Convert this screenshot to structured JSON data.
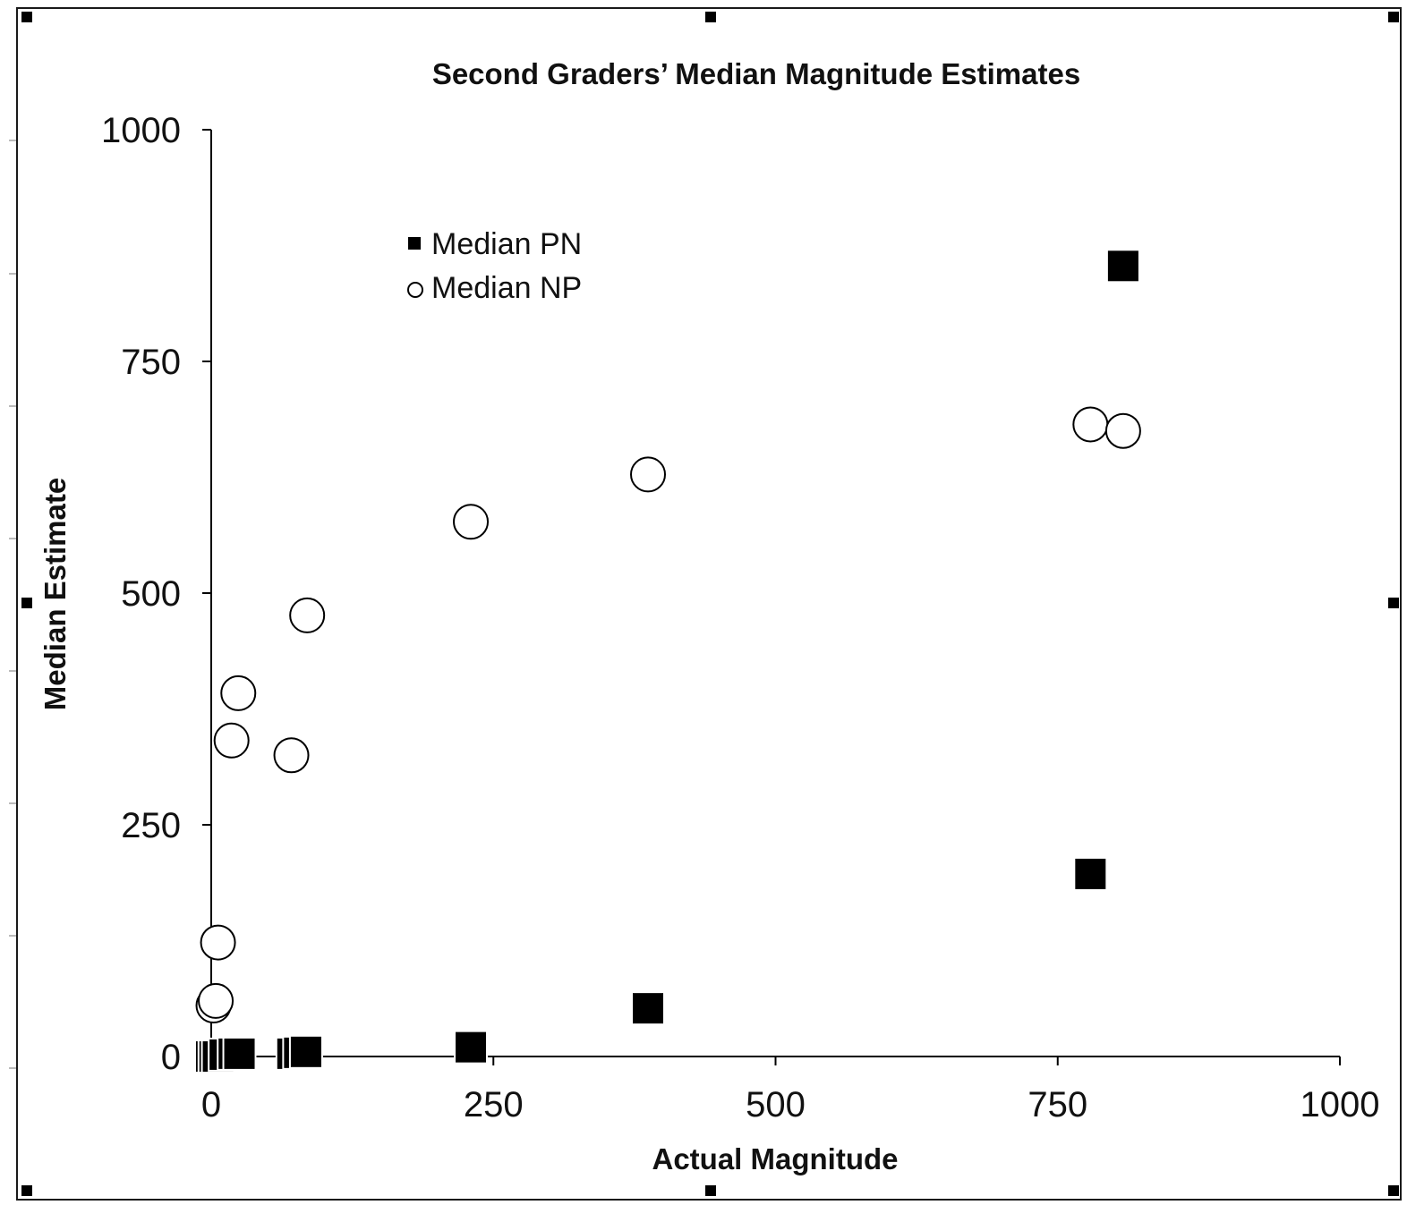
{
  "chart_data": {
    "type": "scatter",
    "title": "Second Graders’ Median Magnitude Estimates",
    "xlabel": "Actual Magnitude",
    "ylabel": "Median Estimate",
    "xlim": [
      0,
      1000
    ],
    "ylim": [
      0,
      1000
    ],
    "x_ticks": [
      "0",
      "250",
      "500",
      "750",
      "1000"
    ],
    "y_ticks": [
      "0",
      "250",
      "500",
      "750",
      "1000"
    ],
    "grid": false,
    "legend_position": "top-left",
    "series": [
      {
        "name": "Median PN",
        "marker": "filled-square",
        "color": "#000000",
        "points": [
          {
            "x": 0,
            "y": 0
          },
          {
            "x": 3,
            "y": 0
          },
          {
            "x": 6,
            "y": 0
          },
          {
            "x": 12,
            "y": 2
          },
          {
            "x": 20,
            "y": 3
          },
          {
            "x": 25,
            "y": 3
          },
          {
            "x": 72,
            "y": 3
          },
          {
            "x": 78,
            "y": 4
          },
          {
            "x": 84,
            "y": 5
          },
          {
            "x": 230,
            "y": 10
          },
          {
            "x": 387,
            "y": 52
          },
          {
            "x": 779,
            "y": 197
          },
          {
            "x": 808,
            "y": 853
          }
        ]
      },
      {
        "name": "Median NP",
        "marker": "open-circle",
        "color": "#000000",
        "points": [
          {
            "x": 2,
            "y": 55
          },
          {
            "x": 4,
            "y": 60
          },
          {
            "x": 6,
            "y": 123
          },
          {
            "x": 18,
            "y": 341
          },
          {
            "x": 24,
            "y": 392
          },
          {
            "x": 71,
            "y": 325
          },
          {
            "x": 85,
            "y": 476
          },
          {
            "x": 230,
            "y": 577
          },
          {
            "x": 387,
            "y": 628
          },
          {
            "x": 779,
            "y": 682
          },
          {
            "x": 808,
            "y": 675
          }
        ]
      }
    ]
  }
}
